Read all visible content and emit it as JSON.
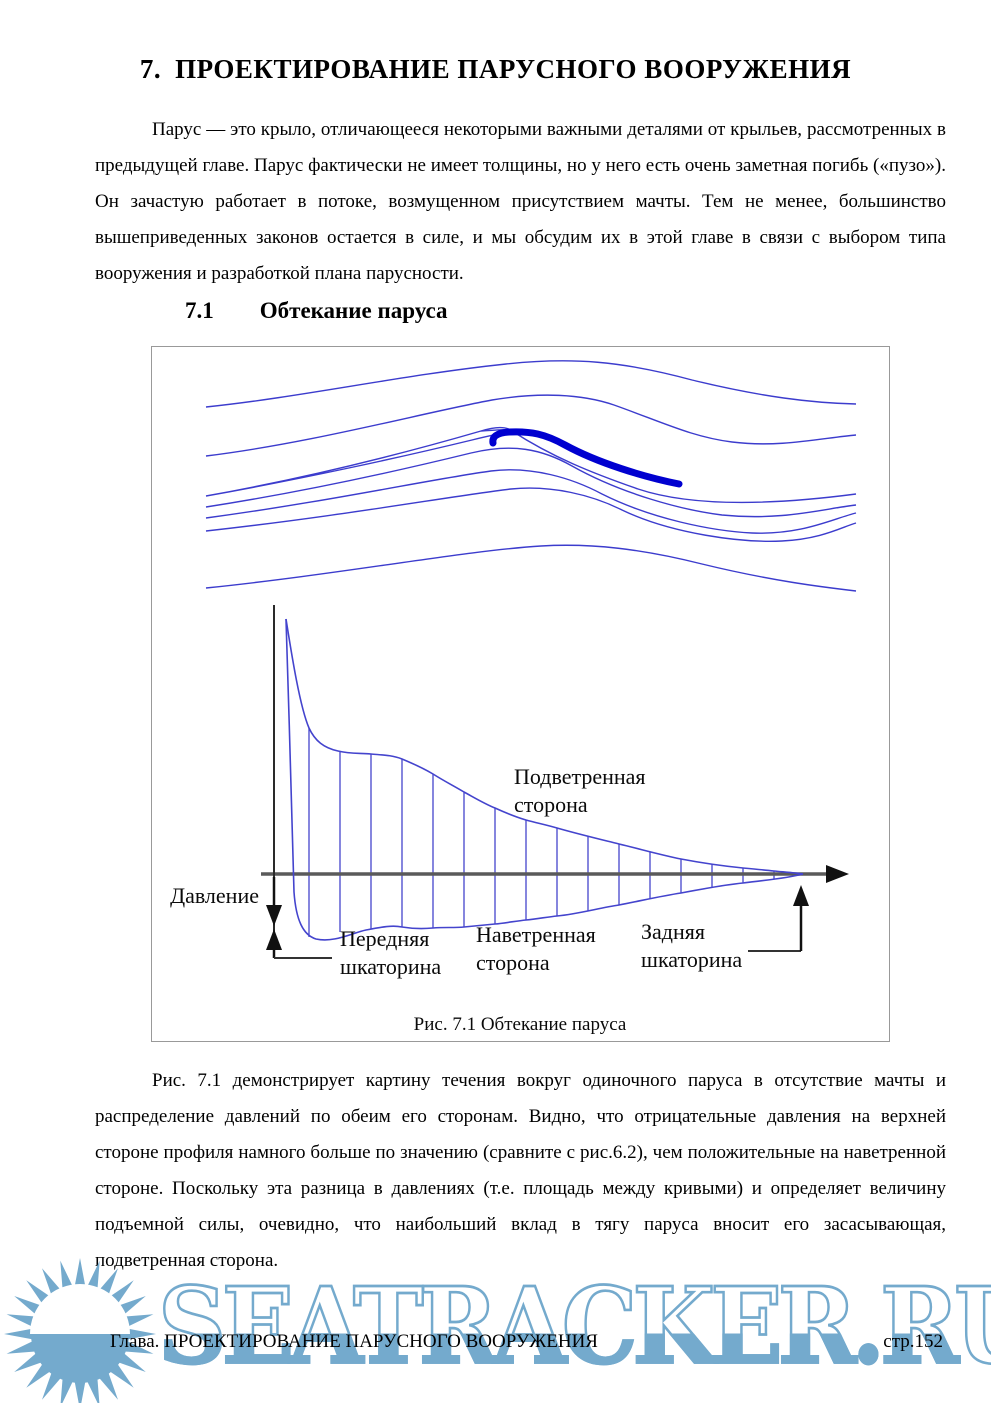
{
  "page": {
    "title": {
      "number": "7.",
      "text": "ПРОЕКТИРОВАНИЕ ПАРУСНОГО ВООРУЖЕНИЯ"
    },
    "intro_paragraph": "Парус — это крыло, отличающееся некоторыми важными деталями от крыльев, рассмотренных в предыдущей главе. Парус фактически не имеет толщины, но у него есть очень заметная погибь («пузо»). Он зачастую работает в потоке, возмущенном присутствием мачты. Тем не менее, большинство вышеприведенных законов остается в силе, и мы обсудим их в этой главе в связи с выбором типа вооружения и разработкой плана парусности.",
    "section": {
      "number": "7.1",
      "title": "Обтекание паруса"
    },
    "figure": {
      "caption": "Рис. 7.1 Обтекание паруса",
      "labels": {
        "pressure_axis": "Давление",
        "leeward_side": [
          "Подветренная",
          "сторона"
        ],
        "windward_side": [
          "Наветренная",
          "сторона"
        ],
        "luff": [
          "Передняя",
          "шкаторина"
        ],
        "leech": [
          "Задняя",
          "шкаторина"
        ]
      }
    },
    "body_paragraph": "Рис. 7.1 демонстрирует картину течения вокруг одиночного паруса в отсутствие мачты и распределение давлений по обеим его сторонам. Видно, что отрицательные давления на верхней стороне профиля намного больше по значению (сравните с рис.6.2), чем положительные на наветренной стороне. Поскольку эта разница в давлениях (т.е. площадь между кривыми) и определяет величину подъемной силы, очевидно, что наибольший вклад в тягу паруса вносит его засасывающая, подветренная сторона.",
    "footer": {
      "chapter_label": "Глава. ПРОЕКТИРОВАНИЕ ПАРУСНОГО ВООРУЖЕНИЯ",
      "page_label": "стр.152"
    },
    "watermark_text": "SEATRACKER.RU",
    "colors": {
      "streamline": "#3c3ccd",
      "sail": "#0000d0",
      "diagram_curve": "#4444cd",
      "axis_gray": "#5a5a5a",
      "watermark_blue": "#74aacd"
    }
  }
}
